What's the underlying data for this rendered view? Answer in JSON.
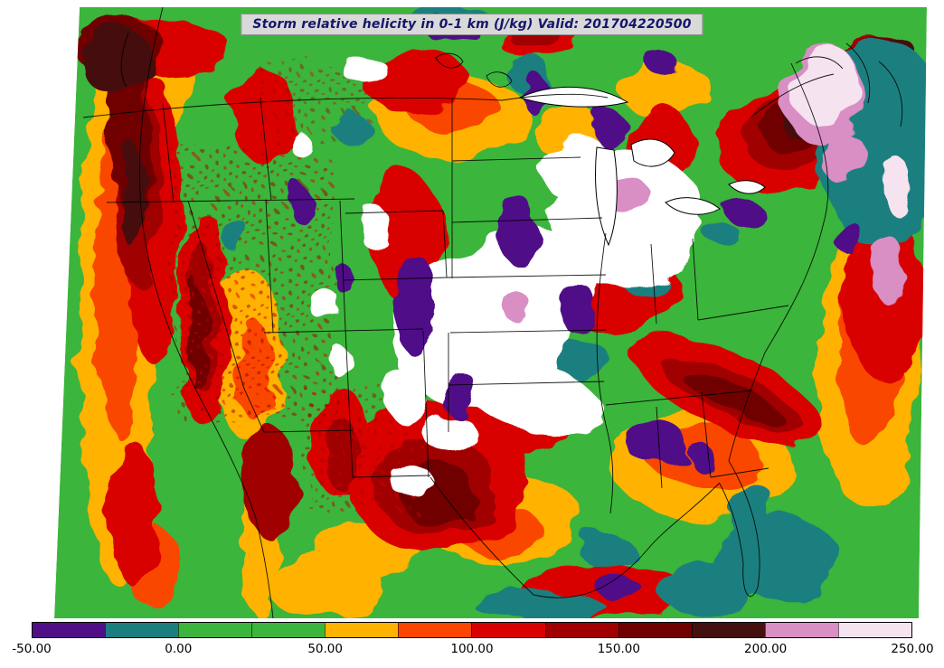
{
  "title_bar": {
    "text": "Storm relative helicity in 0-1 km (J/kg) Valid: 201704220500"
  },
  "chart_data": {
    "type": "heatmap",
    "title": "Storm relative helicity in 0-1 km (J/kg)",
    "valid_time": "201704220500",
    "variable": "storm relative helicity, 0-1 km layer",
    "units": "J/kg",
    "region": "Continental United States and surroundings (conic weather-map projection)",
    "colorbar": {
      "orientation": "horizontal",
      "levels": [
        -50,
        -25,
        0,
        25,
        50,
        75,
        100,
        125,
        150,
        175,
        200,
        225,
        250
      ],
      "segment_colors": [
        "#500f87",
        "#1b7f7f",
        "#3bb53b",
        "#3bb53b",
        "#ffb300",
        "#fa4600",
        "#d90000",
        "#a00000",
        "#700000",
        "#451010",
        "#d98ec4",
        "#f6e3f0"
      ],
      "tick_labels": [
        "-50.00",
        "0.00",
        "50.00",
        "100.00",
        "150.00",
        "200.00",
        "250.00"
      ],
      "tick_values": [
        -50,
        0,
        50,
        100,
        150,
        200,
        250
      ]
    },
    "qualitative_field": [
      "Background values of 0-50 J/kg (green) cover much of the domain",
      "Maxima above 250 J/kg (white) over the central Plains, mid-Mississippi Valley and Great Lakes",
      "Bands of 125-200 J/kg (dark red / maroon) along the Pacific coastal ranges, Texas, the southern Appalachians, the Northeast and top-right corner",
      "Pockets of negative values (purple -50 to -25, teal -25 to 0) fringe the central maximum, the Gulf coast and the northwest Atlantic"
    ]
  },
  "colors": {
    "figure_background": "#ffffff",
    "title_background": "#d9d9d9",
    "title_text": "#16166b",
    "map_base_green": "#3bb53b"
  }
}
